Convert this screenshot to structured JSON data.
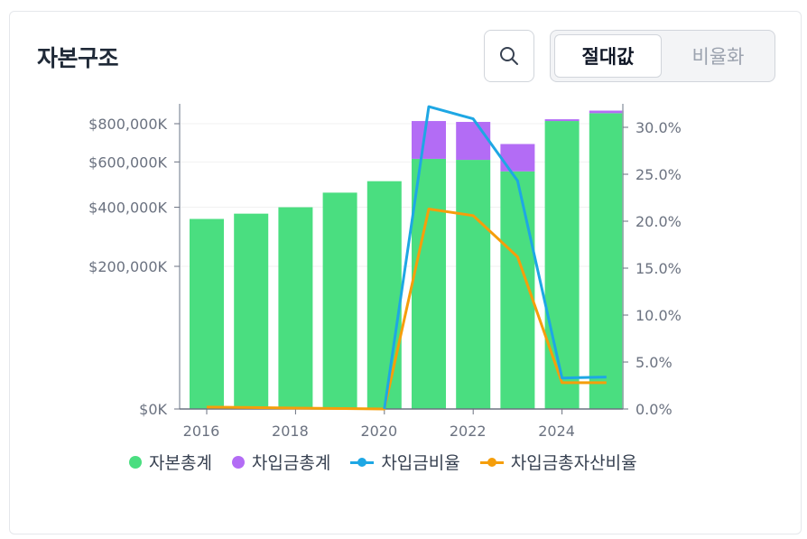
{
  "card": {
    "title": "자본구조",
    "toggle": {
      "absolute_label": "절대값",
      "ratio_label": "비율화",
      "selected": "absolute"
    }
  },
  "chart_data": {
    "type": "bar",
    "x": [
      2016,
      2017,
      2018,
      2019,
      2020,
      2021,
      2022,
      2023,
      2024,
      2025
    ],
    "x_ticks": [
      "2016",
      "2018",
      "2020",
      "2022",
      "2024"
    ],
    "y_left_ticks": [
      "$0K",
      "$200,000K",
      "$400,000K",
      "$600,000K",
      "$800,000K"
    ],
    "y_left_tick_values": [
      0,
      200000,
      400000,
      600000,
      800000
    ],
    "y_right_ticks": [
      "0.0%",
      "5.0%",
      "10.0%",
      "15.0%",
      "20.0%",
      "25.0%",
      "30.0%"
    ],
    "y_right_tick_values": [
      0,
      5,
      10,
      15,
      20,
      25,
      30
    ],
    "y_left_scale": "sqrt",
    "y_right_range": [
      0,
      32.5
    ],
    "grid": true,
    "legend_position": "bottom",
    "series": [
      {
        "name": "자본총계",
        "kind": "bar",
        "stack": "capital",
        "color": "#4ade80",
        "values": [
          355000,
          375000,
          400000,
          460000,
          510000,
          615000,
          610000,
          555000,
          815000,
          860000
        ]
      },
      {
        "name": "차입금총계",
        "kind": "bar",
        "stack": "capital",
        "color": "#b36cf5",
        "values": [
          0,
          0,
          0,
          0,
          0,
          200000,
          200000,
          135000,
          10000,
          15000
        ]
      },
      {
        "name": "차입금비율",
        "kind": "line",
        "axis": "right",
        "color": "#1ea7e4",
        "values": [
          null,
          null,
          null,
          null,
          0,
          32.2,
          30.9,
          24.3,
          3.3,
          3.4
        ]
      },
      {
        "name": "차입금총자산비율",
        "kind": "line",
        "axis": "right",
        "color": "#f59e0b",
        "values": [
          0.2,
          0.15,
          0.1,
          0.05,
          0,
          21.3,
          20.6,
          16.2,
          2.8,
          2.8
        ]
      }
    ]
  }
}
